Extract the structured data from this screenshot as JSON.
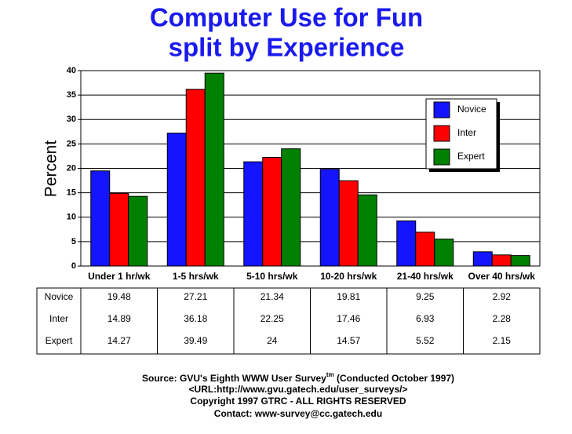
{
  "chart_data": {
    "type": "bar",
    "title": [
      "Computer Use for Fun",
      "split by Experience"
    ],
    "y_label": "Percent",
    "categories": [
      "Under 1 hr/wk",
      "1-5 hrs/wk",
      "5-10 hrs/wk",
      "10-20 hrs/wk",
      "21-40 hrs/wk",
      "Over 40 hrs/wk"
    ],
    "series": [
      {
        "name": "Novice",
        "color": "#1414ff",
        "values": [
          19.48,
          27.21,
          21.34,
          19.81,
          9.25,
          2.92
        ]
      },
      {
        "name": "Inter",
        "color": "#ff0000",
        "values": [
          14.89,
          36.18,
          22.25,
          17.46,
          6.93,
          2.28
        ]
      },
      {
        "name": "Expert",
        "color": "#008000",
        "values": [
          14.27,
          39.49,
          24,
          14.57,
          5.52,
          2.15
        ]
      }
    ],
    "ylim": [
      0,
      40
    ],
    "yticks": [
      0,
      5,
      10,
      15,
      20,
      25,
      30,
      35,
      40
    ],
    "grid": true,
    "legend": "upper right",
    "source": [
      "Source: GVU's Eighth WWW User Survey",
      "tm",
      " (Conducted October 1997)"
    ],
    "footer": [
      "<URL:http://www.gvu.gatech.edu/user_surveys/>",
      "Copyright 1997 GTRC - ALL RIGHTS RESERVED",
      "Contact: www-survey@cc.gatech.edu"
    ]
  }
}
